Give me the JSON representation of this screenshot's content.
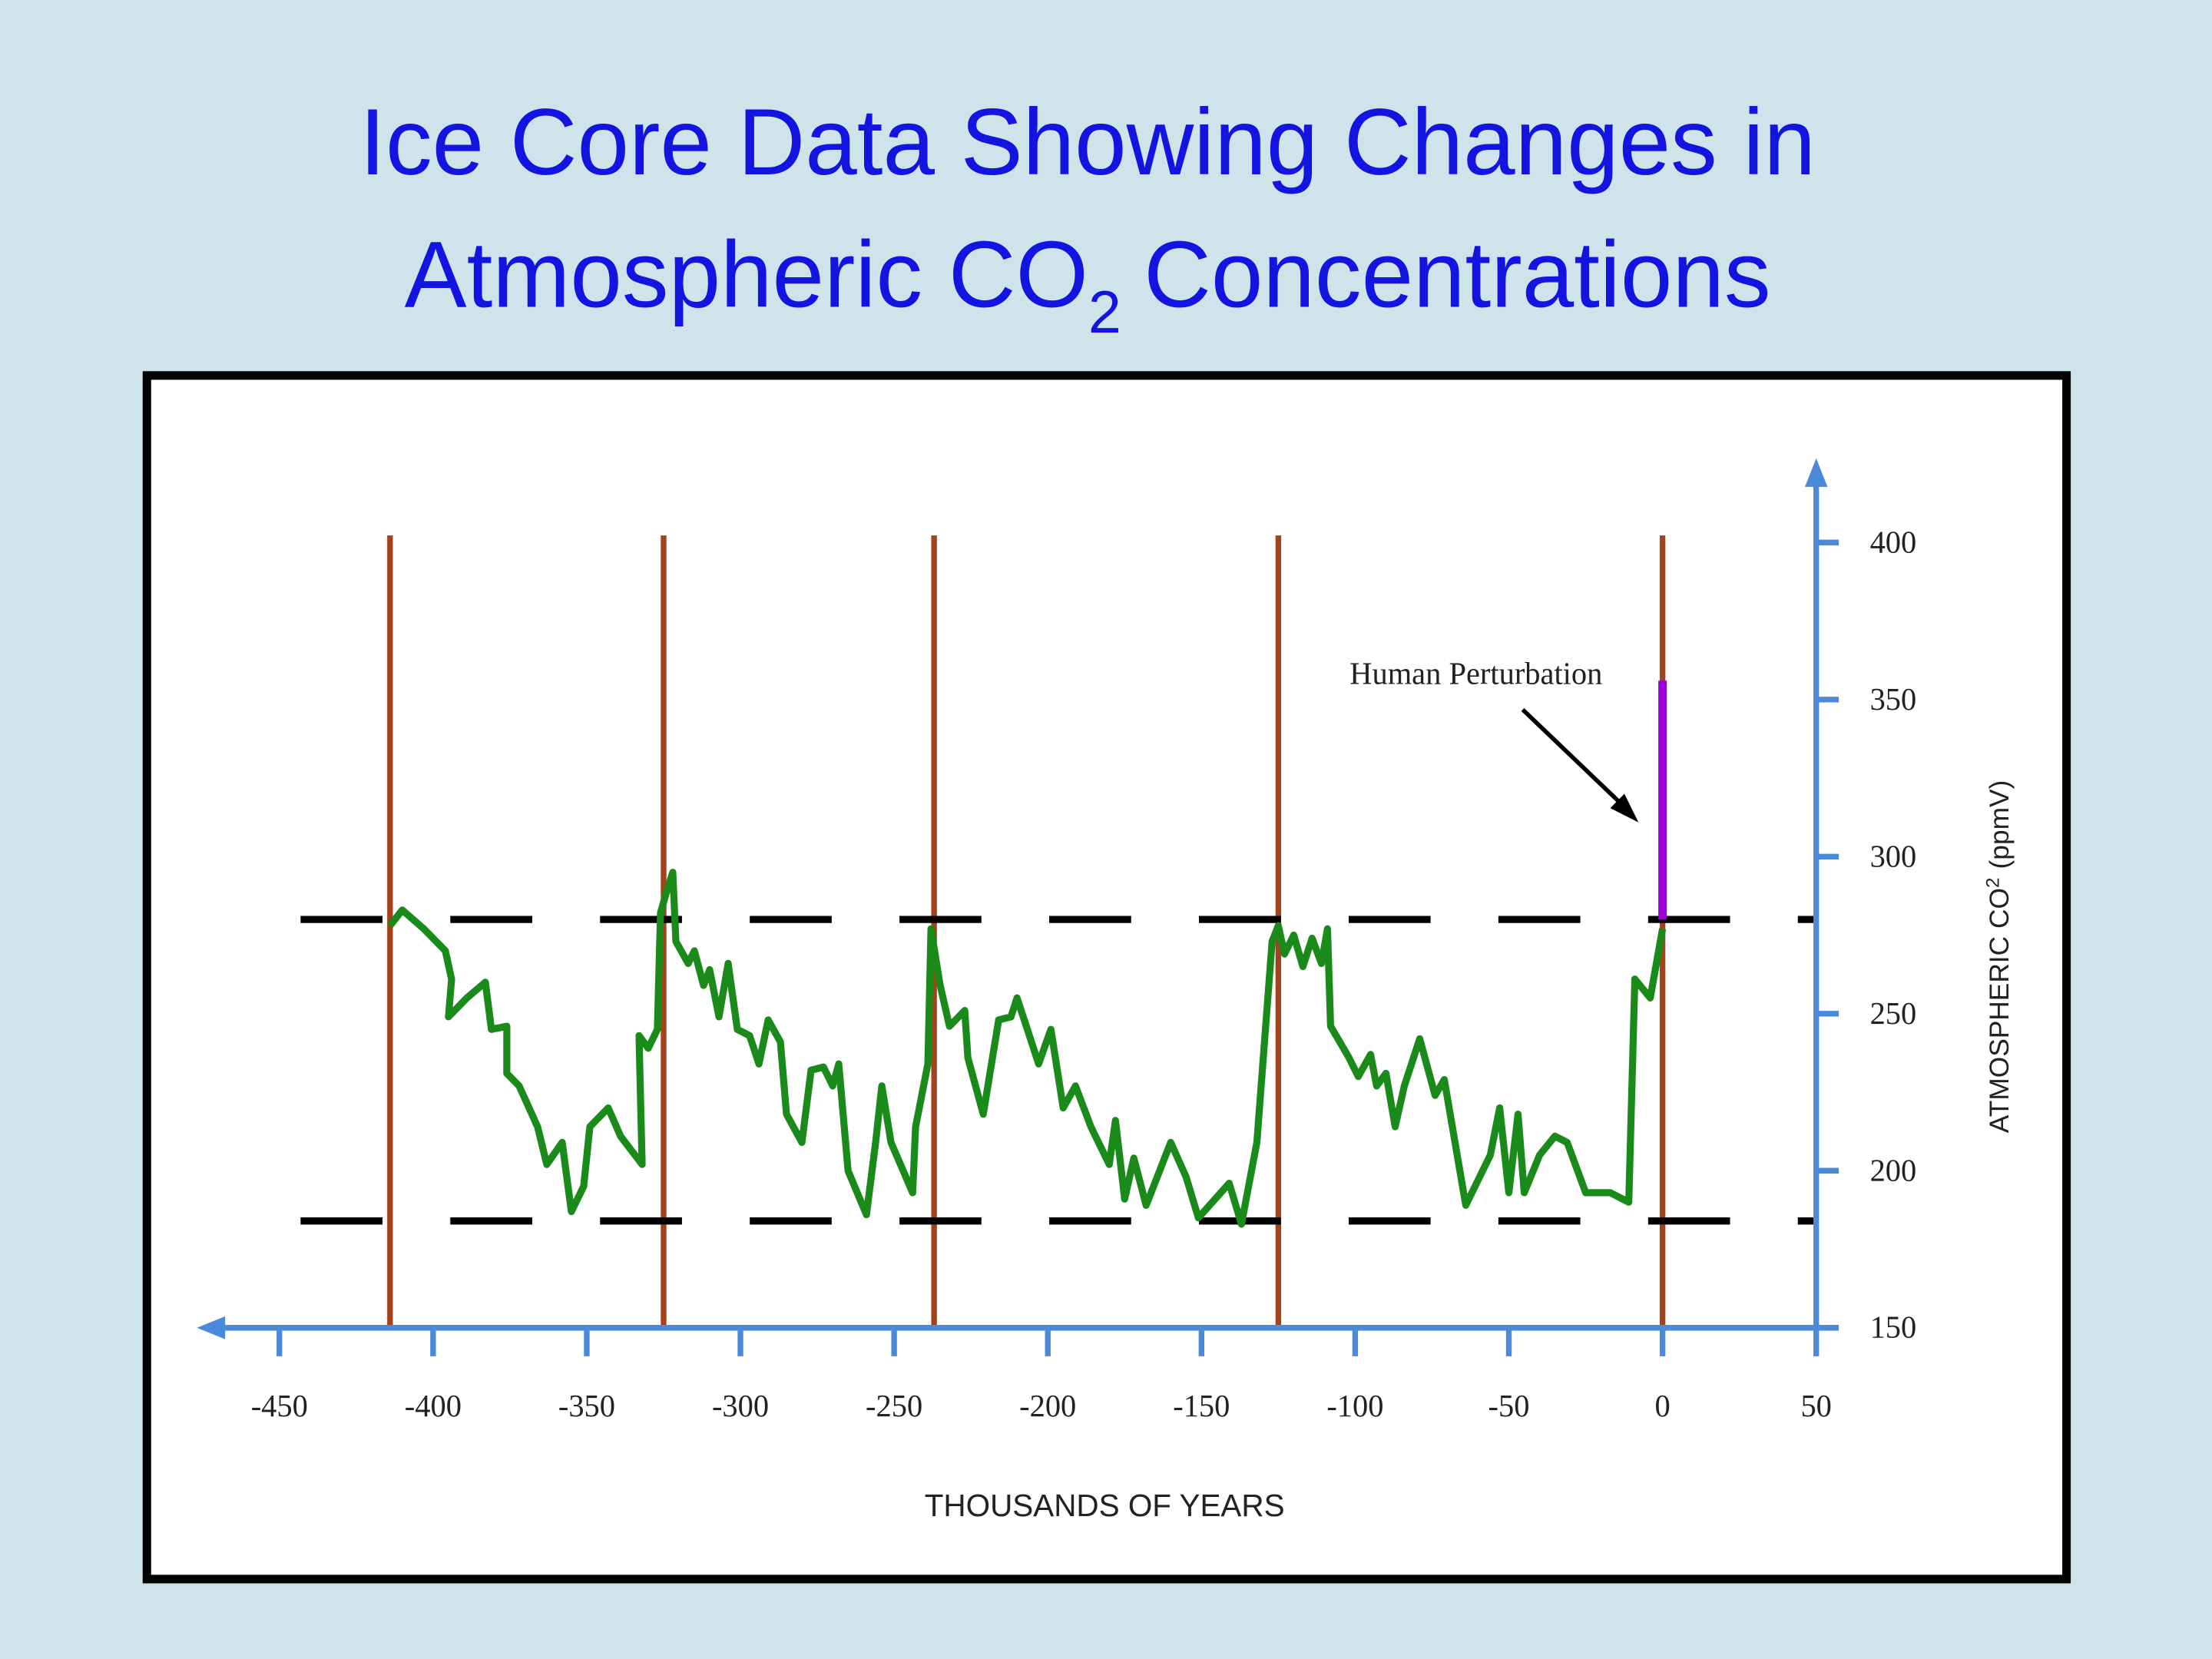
{
  "chart_data": {
    "type": "line",
    "title": [
      "Ice Core Data Showing Changes in",
      "Atmospheric CO",
      "2",
      "Concentrations"
    ],
    "x_label": "THOUSANDS OF YEARS",
    "y_label": [
      "ATMOSPHERIC CO",
      "2",
      "(ppmV)"
    ],
    "annotation": "Human Perturbation",
    "xlim": [
      -475,
      50
    ],
    "xticks": [
      -450,
      -400,
      -350,
      -300,
      -250,
      -200,
      -150,
      -100,
      -50,
      0,
      50
    ],
    "ylim": [
      150,
      425
    ],
    "yticks": [
      150,
      200,
      250,
      300,
      350,
      400
    ],
    "axis_color": "#4a8ad8",
    "series": [
      {
        "color": "#1a8a1a",
        "x": [
          -414,
          -410,
          -403,
          -396,
          -394,
          -395,
          -389,
          -383,
          -381,
          -376,
          -376,
          -372,
          -366,
          -363,
          -358,
          -355,
          -351,
          -349,
          -343,
          -339,
          -332,
          -333,
          -330,
          -327,
          -326,
          -324,
          -322,
          -321,
          -317,
          -315,
          -312,
          -310,
          -307,
          -304,
          -301,
          -297,
          -294,
          -291,
          -287,
          -285,
          -280,
          -277,
          -273,
          -270,
          -268,
          -265,
          -259,
          -256,
          -254,
          -251,
          -244,
          -243,
          -239,
          -238,
          -235,
          -232,
          -227,
          -226,
          -221,
          -216,
          -212,
          -210,
          -207,
          -203,
          -199,
          -195,
          -191,
          -186,
          -180,
          -178,
          -175,
          -172,
          -168,
          -166,
          -160,
          -155,
          -151,
          -141,
          -137,
          -132,
          -127,
          -125,
          -123,
          -120,
          -117,
          -114,
          -111,
          -109,
          -108,
          -102,
          -99,
          -95,
          -93,
          -90,
          -87,
          -84,
          -79,
          -74,
          -71,
          -64,
          -56,
          -53,
          -50,
          -47,
          -45,
          -40,
          -35,
          -31,
          -25,
          -17,
          -11,
          -9,
          -4,
          0
        ],
        "values": [
          278,
          283,
          277,
          270,
          261,
          249,
          255,
          260,
          245,
          246,
          231,
          227,
          214,
          202,
          209,
          187,
          195,
          214,
          220,
          211,
          202,
          243,
          239,
          245,
          282,
          289,
          295,
          273,
          266,
          270,
          259,
          264,
          249,
          266,
          245,
          243,
          234,
          248,
          241,
          218,
          209,
          232,
          233,
          227,
          234,
          200,
          186,
          209,
          227,
          209,
          193,
          214,
          234,
          277,
          259,
          246,
          251,
          236,
          218,
          248,
          249,
          255,
          246,
          234,
          245,
          220,
          227,
          214,
          202,
          216,
          191,
          204,
          189,
          194,
          209,
          198,
          185,
          196,
          183,
          209,
          273,
          278,
          269,
          275,
          265,
          274,
          266,
          277,
          246,
          236,
          230,
          237,
          227,
          231,
          214,
          227,
          242,
          224,
          229,
          189,
          205,
          220,
          193,
          218,
          193,
          205,
          211,
          209,
          193,
          193,
          190,
          261,
          255,
          277
        ]
      }
    ],
    "vertical_lines": {
      "color": "#a3421c",
      "x": [
        -414,
        -325,
        -237,
        -125,
        0
      ]
    },
    "dashed_lines": {
      "color": "#000000",
      "y": [
        280,
        184
      ]
    },
    "human_perturbation": {
      "color": "#9b00d9",
      "x": 0,
      "y": [
        280,
        356
      ]
    }
  }
}
